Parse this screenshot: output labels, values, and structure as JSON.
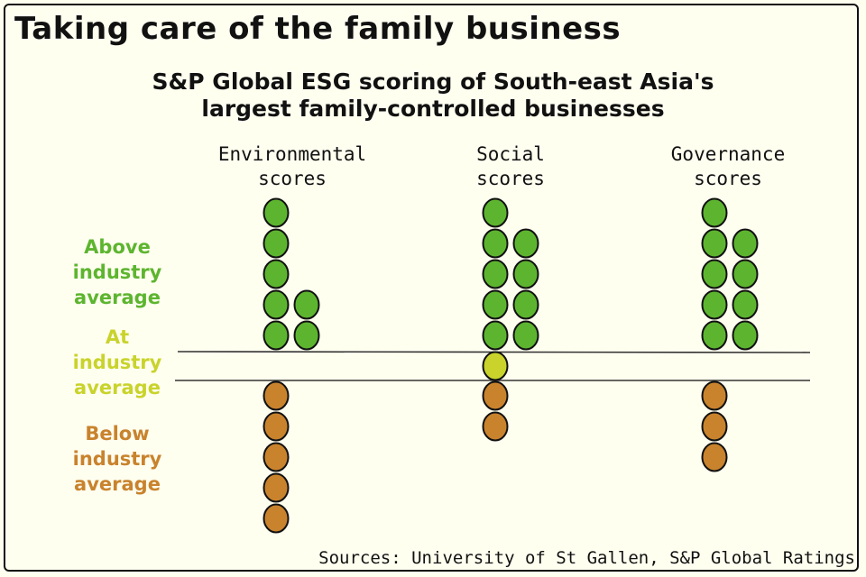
{
  "title": "Taking care of the family business",
  "subtitle_lines": [
    "S&P Global ESG scoring of South-east Asia's",
    "largest family-controlled businesses"
  ],
  "source": "Sources: University of St Gallen, S&P Global Ratings",
  "chart_data": {
    "type": "dot",
    "categories": [
      {
        "label_lines": [
          "Environmental",
          "scores"
        ]
      },
      {
        "label_lines": [
          "Social",
          "scores"
        ]
      },
      {
        "label_lines": [
          "Governance",
          "scores"
        ]
      }
    ],
    "groups": [
      {
        "label_lines": [
          "Above",
          "industry",
          "average"
        ],
        "color": "#5db52f",
        "values": [
          7,
          9,
          9
        ]
      },
      {
        "label_lines": [
          "At",
          "industry",
          "average"
        ],
        "color": "#c9d32b",
        "values": [
          0,
          1,
          0
        ]
      },
      {
        "label_lines": [
          "Below",
          "industry",
          "average"
        ],
        "color": "#c9832d",
        "values": [
          5,
          2,
          3
        ]
      }
    ]
  },
  "colors": {
    "background": "#fffff0",
    "line": "#333333"
  }
}
